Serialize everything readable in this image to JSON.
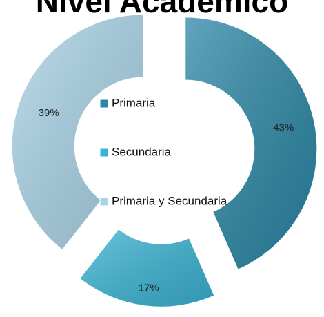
{
  "chart_data": {
    "type": "donut",
    "title": "Nivel Académico",
    "categories": [
      "Primaria",
      "Secundaria",
      "Primaria y Secundaria"
    ],
    "values": [
      43,
      17,
      39
    ],
    "value_labels": [
      "43%",
      "17%",
      "39%"
    ],
    "colors": [
      "#2b87a6",
      "#3bb3d3",
      "#a9d3e6"
    ]
  }
}
